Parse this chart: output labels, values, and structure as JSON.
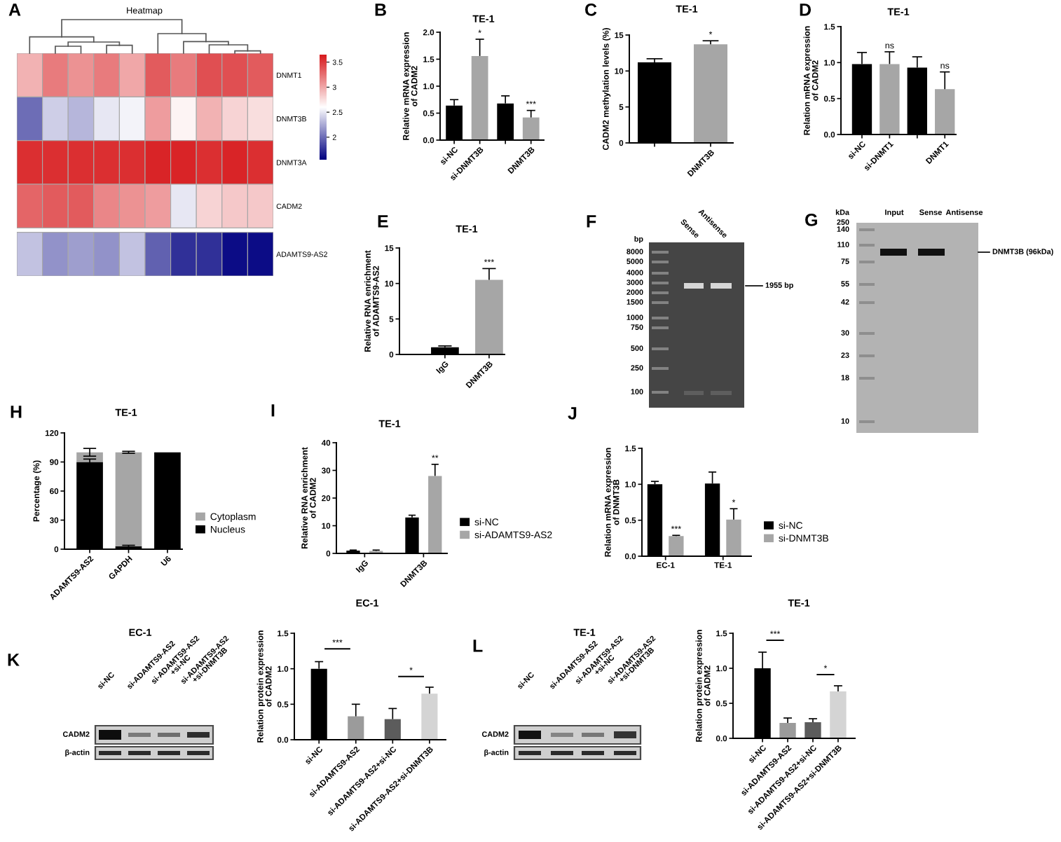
{
  "chart_data": [
    {
      "type": "heatmap",
      "title": "Heatmap",
      "categories": [
        null,
        null,
        null,
        null,
        null,
        null,
        null,
        null,
        null,
        null
      ],
      "y_categories": [
        "DNMT1",
        "DNMT3B",
        "DNMT3A",
        "CADM2",
        "ADAMTS9-AS2"
      ],
      "cells": [
        [
          2.95,
          3.2,
          3.1,
          3.2,
          3.0,
          3.35,
          3.2,
          3.4,
          3.4,
          3.35
        ],
        [
          2.0,
          2.4,
          2.3,
          2.5,
          2.55,
          3.05,
          2.65,
          2.95,
          2.8,
          2.75
        ],
        [
          3.55,
          3.55,
          3.55,
          3.55,
          3.55,
          3.6,
          3.6,
          3.55,
          3.6,
          3.55
        ],
        [
          3.3,
          3.35,
          3.35,
          3.15,
          3.1,
          3.05,
          2.5,
          2.8,
          2.85,
          2.85
        ],
        [
          2.35,
          2.15,
          2.2,
          2.15,
          2.35,
          1.95,
          1.75,
          1.75,
          1.6,
          1.6
        ]
      ],
      "clim": [
        1.55,
        3.65
      ],
      "cticks": [
        2,
        2.5,
        3,
        3.5
      ],
      "annotations": [
        "A"
      ]
    },
    {
      "type": "bar",
      "title": "TE-1",
      "ylabel": "Relative mRNA expression\nof CADM2",
      "categories": [
        "si-NC",
        "si-DNMT3B",
        null,
        "DNMT3B"
      ],
      "values": [
        0.64,
        1.56,
        0.68,
        0.42
      ],
      "colors": [
        "#000000",
        "#a6a6a6",
        "#000000",
        "#a6a6a6"
      ],
      "errors": [
        [
          0.64,
          0.75
        ],
        [
          1.56,
          1.87
        ],
        [
          0.68,
          0.82
        ],
        [
          0.42,
          0.55
        ]
      ],
      "ylim": [
        0,
        2
      ],
      "yticks": [
        {
          "value": 0,
          "label": "0.0"
        },
        0.5,
        {
          "value": 1,
          "label": "1.0"
        },
        1.5,
        {
          "value": 2,
          "label": "2.0"
        }
      ],
      "annotations": [
        "B",
        {
          "text": "*",
          "x": "si-DNMT3B",
          "y": 1.87
        },
        {
          "text": "***",
          "x": "DNMT3B",
          "y": 0.55
        }
      ]
    },
    {
      "type": "bar",
      "title": "TE-1",
      "ylabel": "CADM2 methylation levels (%)",
      "categories": [
        null,
        "DNMT3B"
      ],
      "values": [
        11.2,
        13.7
      ],
      "colors": [
        "#000000",
        "#a6a6a6"
      ],
      "errors": [
        [
          11.2,
          11.7
        ],
        [
          13.7,
          14.2
        ]
      ],
      "ylim": [
        0,
        15
      ],
      "yticks": [
        0,
        5,
        10,
        15
      ],
      "annotations": [
        "C",
        {
          "text": "*",
          "x": "DNMT3B",
          "y": 14.2
        }
      ]
    },
    {
      "type": "bar",
      "title": "TE-1",
      "ylabel": "Relation mRNA expression\nof CADM2",
      "categories": [
        "si-NC",
        "si-DNMT1",
        null,
        "DNMT1"
      ],
      "values": [
        0.98,
        0.98,
        0.93,
        0.63
      ],
      "colors": [
        "#000000",
        "#a6a6a6",
        "#000000",
        "#a6a6a6"
      ],
      "errors": [
        [
          0.98,
          1.14
        ],
        [
          0.98,
          1.15
        ],
        [
          0.93,
          1.08
        ],
        [
          0.63,
          0.87
        ]
      ],
      "ylim": [
        0,
        1.5
      ],
      "yticks": [
        {
          "value": 0,
          "label": "0.0"
        },
        0.5,
        {
          "value": 1,
          "label": "1.0"
        },
        1.5
      ],
      "annotations": [
        "D",
        {
          "text": "ns",
          "x": "si-DNMT1",
          "y": 1.15
        },
        {
          "text": "ns",
          "x": "DNMT1",
          "y": 0.87
        }
      ]
    },
    {
      "type": "bar",
      "title": "TE-1",
      "ylabel": "Relative RNA enrichment\nof ADAMTS9-AS2",
      "categories": [
        "IgG",
        "DNMT3B"
      ],
      "values": [
        1.0,
        10.5
      ],
      "colors": [
        "#000000",
        "#a6a6a6"
      ],
      "errors": [
        [
          1.0,
          1.2
        ],
        [
          10.5,
          12.1
        ]
      ],
      "ylim": [
        0,
        15
      ],
      "yticks": [
        0,
        5,
        10,
        15
      ],
      "annotations": [
        "E",
        {
          "text": "***",
          "x": "DNMT3B",
          "y": 12.1
        }
      ]
    },
    {
      "type": "other",
      "categories": [
        null,
        "Sense",
        "Antisense"
      ],
      "annotations": [
        "F",
        "bp",
        "8000",
        "5000",
        "4000",
        "3000",
        "2000",
        "1500",
        "1000",
        "750",
        "500",
        "250",
        "100",
        "1955 bp"
      ]
    },
    {
      "type": "other",
      "categories": [
        null,
        "Input",
        "Sense",
        "Antisense"
      ],
      "annotations": [
        "G",
        "kDa",
        "250",
        "140",
        "110",
        "75",
        "55",
        "42",
        "30",
        "23",
        "18",
        "10",
        "DNMT3B (96kDa)"
      ]
    },
    {
      "type": "bar",
      "stacked": true,
      "title": "TE-1",
      "ylabel": "Percentage (%)",
      "categories": [
        "ADAMTS9-AS2",
        "GAPDH",
        "U6"
      ],
      "series": [
        {
          "name": "Nucleus",
          "color": "#000000",
          "values": [
            90,
            3,
            100
          ],
          "errors": [
            3,
            1,
            null
          ]
        },
        {
          "name": "Cytoplasm",
          "color": "#a6a6a6",
          "values": [
            10,
            97,
            0
          ],
          "errors": [
            4,
            1,
            null
          ]
        }
      ],
      "ylim": [
        0,
        120
      ],
      "yticks": [
        0,
        30,
        60,
        90,
        120
      ],
      "legend": "right",
      "annotations": [
        "H"
      ]
    },
    {
      "type": "bar",
      "title": "TE-1",
      "ylabel": "Relative RNA enrichment\nof CADM2",
      "categories": [
        "IgG",
        "DNMT3B"
      ],
      "series": [
        {
          "name": "si-NC",
          "color": "#000000",
          "values": [
            1.0,
            13.0
          ],
          "errors": [
            [
              1.0,
              1.2
            ],
            [
              13.0,
              13.8
            ]
          ]
        },
        {
          "name": "si-ADAMTS9-AS2",
          "color": "#a6a6a6",
          "values": [
            0.9,
            28.0
          ],
          "errors": [
            [
              0.9,
              1.2
            ],
            [
              28.0,
              32.2
            ]
          ]
        }
      ],
      "ylim": [
        0,
        40
      ],
      "yticks": [
        0,
        10,
        20,
        30,
        40
      ],
      "legend": "right",
      "annotations": [
        "I",
        "**"
      ]
    },
    {
      "type": "bar",
      "ylabel": "Relation mRNA expression\nof DNMT3B",
      "categories": [
        "EC-1",
        "TE-1"
      ],
      "series": [
        {
          "name": "si-NC",
          "color": "#000000",
          "values": [
            1.0,
            1.01
          ],
          "errors": [
            [
              1.0,
              1.04
            ],
            [
              1.01,
              1.17
            ]
          ]
        },
        {
          "name": "si-DNMT3B",
          "color": "#a6a6a6",
          "values": [
            0.28,
            0.51
          ],
          "errors": [
            [
              0.28,
              0.29
            ],
            [
              0.51,
              0.66
            ]
          ]
        }
      ],
      "ylim": [
        0,
        1.5
      ],
      "yticks": [
        {
          "value": 0,
          "label": "0.0"
        },
        0.5,
        {
          "value": 1,
          "label": "1.0"
        },
        1.5
      ],
      "legend": "right",
      "annotations": [
        "J",
        {
          "text": "***",
          "x": "EC-1",
          "y": 0.29
        },
        {
          "text": "*",
          "x": "TE-1",
          "y": 0.66
        }
      ]
    },
    {
      "type": "other",
      "title": "EC-1",
      "categories": [
        "si-NC",
        "si-ADAMTS9-AS2",
        "si-ADAMTS9-AS2\n+si-NC",
        "si-ADAMTS9-AS2\n+si-DNMT3B"
      ],
      "annotations": [
        "K",
        "CADM2",
        "β-actin"
      ]
    },
    {
      "type": "bar",
      "title": "EC-1",
      "ylabel": "Relation protein expression\nof CADM2",
      "categories": [
        "si-NC",
        "si-ADAMTS9-AS2",
        "si-ADAMTS9-AS2+si-NC",
        "si-ADAMTS9-AS2+si-DNMT3B"
      ],
      "values": [
        1.0,
        0.33,
        0.29,
        0.65
      ],
      "colors": [
        "#000000",
        "#9b9b9b",
        "#5c5c5c",
        "#d4d4d4"
      ],
      "errors": [
        [
          1.0,
          1.1
        ],
        [
          0.33,
          0.5
        ],
        [
          0.29,
          0.44
        ],
        [
          0.65,
          0.74
        ]
      ],
      "ylim": [
        0,
        1.5
      ],
      "yticks": [
        {
          "value": 0,
          "label": "0.0"
        },
        0.5,
        {
          "value": 1,
          "label": "1.0"
        },
        1.5
      ],
      "annotations": [
        "***",
        "*"
      ]
    },
    {
      "type": "other",
      "title": "TE-1",
      "categories": [
        "si-NC",
        "si-ADAMTS9-AS2",
        "si-ADAMTS9-AS2\n+si-NC",
        "si-ADAMTS9-AS2\n+si-DNMT3B"
      ],
      "annotations": [
        "L",
        "CADM2",
        "β-actin"
      ]
    },
    {
      "type": "bar",
      "title": "TE-1",
      "ylabel": "Relation protein expression\nof CADM2",
      "categories": [
        "si-NC",
        "si-ADAMTS9-AS2",
        "si-ADAMTS9-AS2+si-NC",
        "si-ADAMTS9-AS2+si-DNMT3B"
      ],
      "values": [
        1.0,
        0.22,
        0.23,
        0.67
      ],
      "colors": [
        "#000000",
        "#9b9b9b",
        "#5c5c5c",
        "#d4d4d4"
      ],
      "errors": [
        [
          1.0,
          1.23
        ],
        [
          0.22,
          0.29
        ],
        [
          0.23,
          0.28
        ],
        [
          0.67,
          0.75
        ]
      ],
      "ylim": [
        0,
        1.5
      ],
      "yticks": [
        {
          "value": 0,
          "label": "0.0"
        },
        0.5,
        {
          "value": 1,
          "label": "1.0"
        },
        1.5
      ],
      "annotations": [
        "***",
        "*"
      ]
    }
  ]
}
